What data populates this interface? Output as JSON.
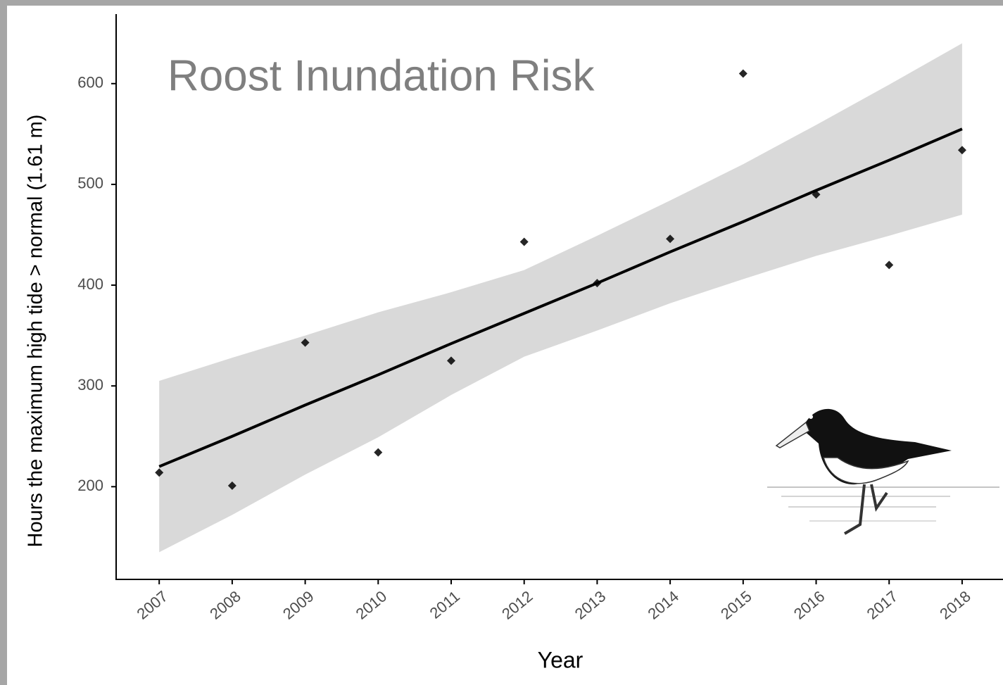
{
  "chart_data": {
    "type": "scatter",
    "title": "Roost Inundation Risk",
    "x_label": "Year",
    "y_label": "Hours the maximum high tide > normal (1.61 m)",
    "x": [
      2007,
      2008,
      2009,
      2010,
      2011,
      2012,
      2013,
      2014,
      2015,
      2016,
      2017,
      2018
    ],
    "values": [
      214,
      201,
      343,
      234,
      325,
      443,
      402,
      446,
      610,
      490,
      420,
      534
    ],
    "color": "#000000",
    "fit": [
      220,
      250,
      281,
      311,
      342,
      372,
      402,
      433,
      463,
      494,
      524,
      555
    ],
    "fit_upper": [
      305,
      328,
      350,
      373,
      393,
      415,
      449,
      484,
      520,
      559,
      599,
      640
    ],
    "fit_lower": [
      135,
      172,
      212,
      249,
      291,
      329,
      355,
      382,
      406,
      429,
      449,
      470
    ],
    "fit_color": "#000000",
    "band_color": "#d9d9d9",
    "xlim": [
      2006.41,
      2018.56
    ],
    "ylim": [
      108,
      669
    ],
    "xticks": [
      2007,
      2008,
      2009,
      2010,
      2011,
      2012,
      2013,
      2014,
      2015,
      2016,
      2017,
      2018
    ],
    "yticks": [
      200,
      300,
      400,
      500,
      600
    ],
    "grid": false
  }
}
